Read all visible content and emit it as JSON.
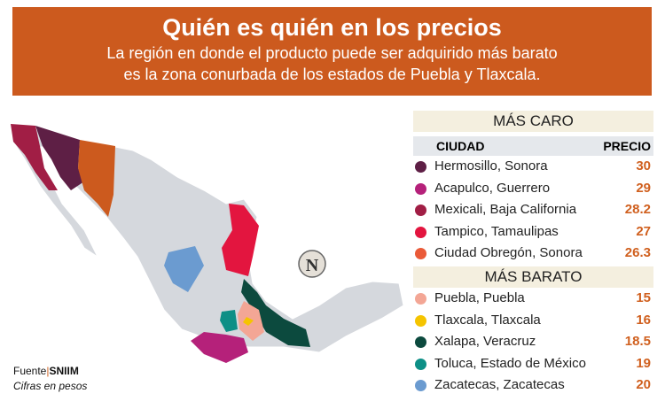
{
  "header": {
    "title": "Quién es quién en los precios",
    "subtitle_line1": "La región en donde el producto puede ser adquirido más barato",
    "subtitle_line2": "es la zona conurbada de los estados de Puebla y Tlaxcala."
  },
  "table": {
    "expensive_label": "MÁS CARO",
    "col_city": "CIUDAD",
    "col_price": "PRECIO",
    "expensive": [
      {
        "city": "Hermosillo, Sonora",
        "price": "30",
        "color": "#5e1f45"
      },
      {
        "city": "Acapulco, Guerrero",
        "price": "29",
        "color": "#b5217a"
      },
      {
        "city": "Mexicali, Baja California",
        "price": "28.2",
        "color": "#a11e45"
      },
      {
        "city": "Tampico, Tamaulipas",
        "price": "27",
        "color": "#e3153f"
      },
      {
        "city": "Ciudad Obregón, Sonora",
        "price": "26.3",
        "color": "#ea5a38"
      }
    ],
    "cheap_label": "MÁS BARATO",
    "cheap": [
      {
        "city": "Puebla, Puebla",
        "price": "15",
        "color": "#f3a695"
      },
      {
        "city": "Tlaxcala, Tlaxcala",
        "price": "16",
        "color": "#f5c400"
      },
      {
        "city": "Xalapa, Veracruz",
        "price": "18.5",
        "color": "#0c4a3e"
      },
      {
        "city": "Toluca, Estado de México",
        "price": "19",
        "color": "#0d8f86"
      },
      {
        "city": "Zacatecas, Zacatecas",
        "price": "20",
        "color": "#6b9bd0"
      }
    ]
  },
  "source": {
    "label": "Fuente",
    "name": "SNIIM",
    "note": "Cifras en pesos"
  },
  "map": {
    "north_icon": "N",
    "base_color": "#d5d8dd"
  }
}
